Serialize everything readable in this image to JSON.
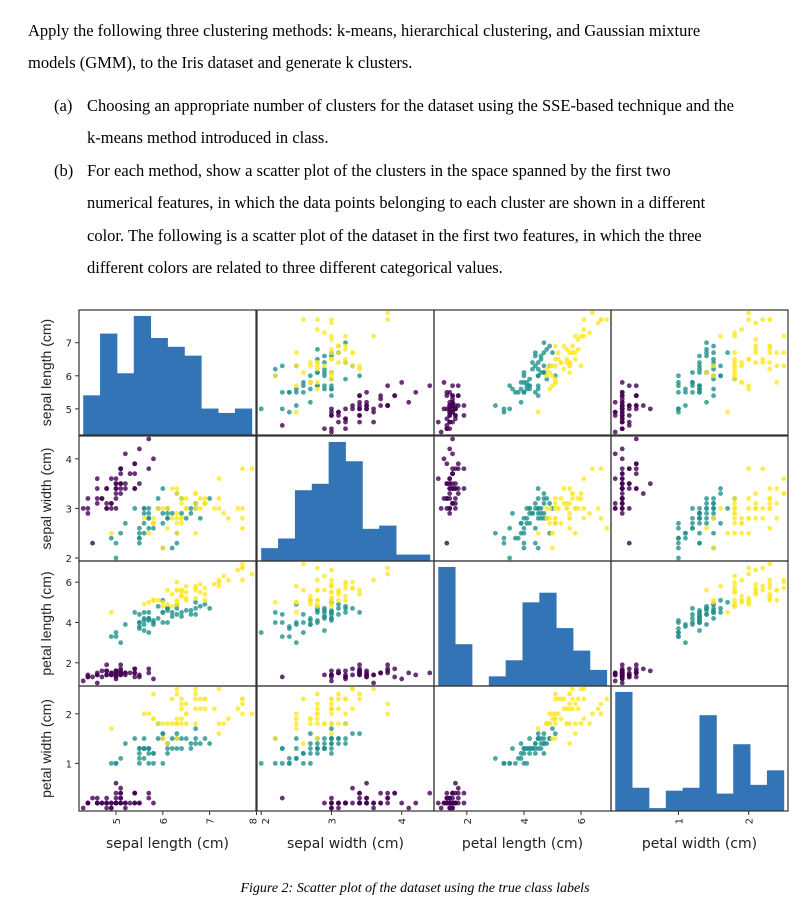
{
  "intro": {
    "line1": "Apply the following three clustering methods: k-means, hierarchical clustering, and Gaussian mixture",
    "line2": "models (GMM), to the Iris dataset and generate k clusters."
  },
  "items": [
    {
      "label": "(a)",
      "lines": [
        "Choosing an appropriate number of clusters for the dataset using the SSE-based technique and the",
        "k-means method introduced in class."
      ]
    },
    {
      "label": "(b)",
      "lines": [
        "For each method, show a scatter plot of the clusters in the space spanned by the first two",
        "numerical features, in which the data points belonging to each cluster are shown in a different",
        "color. The following is a scatter plot of the dataset in the first two features, in which the three",
        "different colors are related to three different categorical values."
      ]
    }
  ],
  "caption": "Figure 2: Scatter plot of the dataset using the true class labels",
  "chart_data": {
    "type": "scatter",
    "layout": "scatter-matrix",
    "diagonal": "histogram",
    "hist_bins": 10,
    "hist_color": "#3274b5",
    "variables": [
      "sepal length (cm)",
      "sepal width (cm)",
      "petal length (cm)",
      "petal width (cm)"
    ],
    "ranges": [
      [
        4.21,
        7.99
      ],
      [
        1.94,
        4.46
      ],
      [
        0.85,
        7.05
      ],
      [
        0.04,
        2.56
      ]
    ],
    "ticks": [
      [
        5,
        6,
        7,
        8
      ],
      [
        2,
        3,
        4
      ],
      [
        2,
        4,
        6
      ],
      [
        1,
        2
      ]
    ],
    "left_ticks": [
      [
        5,
        6,
        7
      ],
      [
        2,
        3,
        4
      ],
      [
        2,
        4,
        6
      ],
      [
        1,
        2
      ]
    ],
    "grid": false,
    "legend": "none",
    "class_colors": [
      "#440154",
      "#21918c",
      "#fde725"
    ],
    "series": [
      {
        "values": [
          [
            5.1,
            3.5,
            1.4,
            0.2
          ],
          [
            4.9,
            3.0,
            1.4,
            0.2
          ],
          [
            4.7,
            3.2,
            1.3,
            0.2
          ],
          [
            4.6,
            3.1,
            1.5,
            0.2
          ],
          [
            5.0,
            3.6,
            1.4,
            0.2
          ],
          [
            5.4,
            3.9,
            1.7,
            0.4
          ],
          [
            4.6,
            3.4,
            1.4,
            0.3
          ],
          [
            5.0,
            3.4,
            1.5,
            0.2
          ],
          [
            4.4,
            2.9,
            1.4,
            0.2
          ],
          [
            4.9,
            3.1,
            1.5,
            0.1
          ],
          [
            5.4,
            3.7,
            1.5,
            0.2
          ],
          [
            4.8,
            3.4,
            1.6,
            0.2
          ],
          [
            4.8,
            3.0,
            1.4,
            0.1
          ],
          [
            4.3,
            3.0,
            1.1,
            0.1
          ],
          [
            5.8,
            4.0,
            1.2,
            0.2
          ],
          [
            5.7,
            4.4,
            1.5,
            0.4
          ],
          [
            5.4,
            3.9,
            1.3,
            0.4
          ],
          [
            5.1,
            3.5,
            1.4,
            0.3
          ],
          [
            5.7,
            3.8,
            1.7,
            0.3
          ],
          [
            5.1,
            3.8,
            1.5,
            0.3
          ],
          [
            5.4,
            3.4,
            1.7,
            0.2
          ],
          [
            5.1,
            3.7,
            1.5,
            0.4
          ],
          [
            4.6,
            3.6,
            1.0,
            0.2
          ],
          [
            5.1,
            3.3,
            1.7,
            0.5
          ],
          [
            4.8,
            3.4,
            1.9,
            0.2
          ],
          [
            5.0,
            3.0,
            1.6,
            0.2
          ],
          [
            5.0,
            3.4,
            1.6,
            0.4
          ],
          [
            5.2,
            3.5,
            1.5,
            0.2
          ],
          [
            5.2,
            3.4,
            1.4,
            0.2
          ],
          [
            4.7,
            3.2,
            1.6,
            0.2
          ],
          [
            4.8,
            3.1,
            1.6,
            0.2
          ],
          [
            5.4,
            3.4,
            1.5,
            0.4
          ],
          [
            5.2,
            4.1,
            1.5,
            0.1
          ],
          [
            5.5,
            4.2,
            1.4,
            0.2
          ],
          [
            4.9,
            3.1,
            1.5,
            0.2
          ],
          [
            5.0,
            3.2,
            1.2,
            0.2
          ],
          [
            5.5,
            3.5,
            1.3,
            0.2
          ],
          [
            4.9,
            3.6,
            1.4,
            0.1
          ],
          [
            4.4,
            3.0,
            1.3,
            0.2
          ],
          [
            5.1,
            3.4,
            1.5,
            0.2
          ],
          [
            5.0,
            3.5,
            1.3,
            0.3
          ],
          [
            4.5,
            2.3,
            1.3,
            0.3
          ],
          [
            4.4,
            3.2,
            1.3,
            0.2
          ],
          [
            5.0,
            3.5,
            1.6,
            0.6
          ],
          [
            5.1,
            3.8,
            1.9,
            0.4
          ],
          [
            4.8,
            3.0,
            1.4,
            0.3
          ],
          [
            5.1,
            3.8,
            1.6,
            0.2
          ],
          [
            4.6,
            3.2,
            1.4,
            0.2
          ],
          [
            5.3,
            3.7,
            1.5,
            0.2
          ],
          [
            5.0,
            3.3,
            1.4,
            0.2
          ]
        ]
      },
      {
        "values": [
          [
            7.0,
            3.2,
            4.7,
            1.4
          ],
          [
            6.4,
            3.2,
            4.5,
            1.5
          ],
          [
            6.9,
            3.1,
            4.9,
            1.5
          ],
          [
            5.5,
            2.3,
            4.0,
            1.3
          ],
          [
            6.5,
            2.8,
            4.6,
            1.5
          ],
          [
            5.7,
            2.8,
            4.5,
            1.3
          ],
          [
            6.3,
            3.3,
            4.7,
            1.6
          ],
          [
            4.9,
            2.4,
            3.3,
            1.0
          ],
          [
            6.6,
            2.9,
            4.6,
            1.3
          ],
          [
            5.2,
            2.7,
            3.9,
            1.4
          ],
          [
            5.0,
            2.0,
            3.5,
            1.0
          ],
          [
            5.9,
            3.0,
            4.2,
            1.5
          ],
          [
            6.0,
            2.2,
            4.0,
            1.0
          ],
          [
            6.1,
            2.9,
            4.7,
            1.4
          ],
          [
            5.6,
            2.9,
            3.6,
            1.3
          ],
          [
            6.7,
            3.1,
            4.4,
            1.4
          ],
          [
            5.6,
            3.0,
            4.5,
            1.5
          ],
          [
            5.8,
            2.7,
            4.1,
            1.0
          ],
          [
            6.2,
            2.2,
            4.5,
            1.5
          ],
          [
            5.6,
            2.5,
            3.9,
            1.1
          ],
          [
            5.9,
            3.2,
            4.8,
            1.8
          ],
          [
            6.1,
            2.8,
            4.0,
            1.3
          ],
          [
            6.3,
            2.5,
            4.9,
            1.5
          ],
          [
            6.1,
            2.8,
            4.7,
            1.2
          ],
          [
            6.4,
            2.9,
            4.3,
            1.3
          ],
          [
            6.6,
            3.0,
            4.4,
            1.4
          ],
          [
            6.8,
            2.8,
            4.8,
            1.4
          ],
          [
            6.7,
            3.0,
            5.0,
            1.7
          ],
          [
            6.0,
            2.9,
            4.5,
            1.5
          ],
          [
            5.7,
            2.6,
            3.5,
            1.0
          ],
          [
            5.5,
            2.4,
            3.8,
            1.1
          ],
          [
            5.5,
            2.4,
            3.7,
            1.0
          ],
          [
            5.8,
            2.7,
            3.9,
            1.2
          ],
          [
            6.0,
            2.7,
            5.1,
            1.6
          ],
          [
            5.4,
            3.0,
            4.5,
            1.5
          ],
          [
            6.0,
            3.4,
            4.5,
            1.6
          ],
          [
            6.7,
            3.1,
            4.7,
            1.5
          ],
          [
            6.3,
            2.3,
            4.4,
            1.3
          ],
          [
            5.6,
            3.0,
            4.1,
            1.3
          ],
          [
            5.5,
            2.5,
            4.0,
            1.3
          ],
          [
            5.5,
            2.6,
            4.4,
            1.2
          ],
          [
            6.1,
            3.0,
            4.6,
            1.4
          ],
          [
            5.8,
            2.6,
            4.0,
            1.2
          ],
          [
            5.0,
            2.3,
            3.3,
            1.0
          ],
          [
            5.6,
            2.7,
            4.2,
            1.3
          ],
          [
            5.7,
            3.0,
            4.2,
            1.2
          ],
          [
            5.7,
            2.9,
            4.2,
            1.3
          ],
          [
            6.2,
            2.9,
            4.3,
            1.3
          ],
          [
            5.1,
            2.5,
            3.0,
            1.1
          ],
          [
            5.7,
            2.8,
            4.1,
            1.3
          ]
        ]
      },
      {
        "values": [
          [
            6.3,
            3.3,
            6.0,
            2.5
          ],
          [
            5.8,
            2.7,
            5.1,
            1.9
          ],
          [
            7.1,
            3.0,
            5.9,
            2.1
          ],
          [
            6.3,
            2.9,
            5.6,
            1.8
          ],
          [
            6.5,
            3.0,
            5.8,
            2.2
          ],
          [
            7.6,
            3.0,
            6.6,
            2.1
          ],
          [
            4.9,
            2.5,
            4.5,
            1.7
          ],
          [
            7.3,
            2.9,
            6.3,
            1.8
          ],
          [
            6.7,
            2.5,
            5.8,
            1.8
          ],
          [
            7.2,
            3.6,
            6.1,
            2.5
          ],
          [
            6.5,
            3.2,
            5.1,
            2.0
          ],
          [
            6.4,
            2.7,
            5.3,
            1.9
          ],
          [
            6.8,
            3.0,
            5.5,
            2.1
          ],
          [
            5.7,
            2.5,
            5.0,
            2.0
          ],
          [
            5.8,
            2.8,
            5.1,
            2.4
          ],
          [
            6.4,
            3.2,
            5.3,
            2.3
          ],
          [
            6.5,
            3.0,
            5.5,
            1.8
          ],
          [
            7.7,
            3.8,
            6.7,
            2.2
          ],
          [
            7.7,
            2.6,
            6.9,
            2.3
          ],
          [
            6.0,
            2.2,
            5.0,
            1.5
          ],
          [
            6.9,
            3.2,
            5.7,
            2.3
          ],
          [
            5.6,
            2.8,
            4.9,
            2.0
          ],
          [
            7.7,
            2.8,
            6.7,
            2.0
          ],
          [
            6.3,
            2.7,
            4.9,
            1.8
          ],
          [
            6.7,
            3.3,
            5.7,
            2.1
          ],
          [
            7.2,
            3.2,
            6.0,
            1.8
          ],
          [
            6.2,
            2.8,
            4.8,
            1.8
          ],
          [
            6.1,
            3.0,
            4.9,
            1.8
          ],
          [
            6.4,
            2.8,
            5.6,
            2.1
          ],
          [
            7.2,
            3.0,
            5.8,
            1.6
          ],
          [
            7.4,
            2.8,
            6.1,
            1.9
          ],
          [
            7.9,
            3.8,
            6.4,
            2.0
          ],
          [
            6.4,
            2.8,
            5.6,
            2.2
          ],
          [
            6.3,
            2.8,
            5.1,
            1.5
          ],
          [
            6.1,
            2.6,
            5.6,
            1.4
          ],
          [
            7.7,
            3.0,
            6.1,
            2.3
          ],
          [
            6.3,
            3.4,
            5.6,
            2.4
          ],
          [
            6.4,
            3.1,
            5.5,
            1.8
          ],
          [
            6.0,
            3.0,
            4.8,
            1.8
          ],
          [
            6.9,
            3.1,
            5.4,
            2.1
          ],
          [
            6.7,
            3.1,
            5.6,
            2.4
          ],
          [
            6.9,
            3.1,
            5.1,
            2.3
          ],
          [
            5.8,
            2.7,
            5.1,
            1.9
          ],
          [
            6.8,
            3.2,
            5.9,
            2.3
          ],
          [
            6.7,
            3.3,
            5.7,
            2.5
          ],
          [
            6.7,
            3.0,
            5.2,
            2.3
          ],
          [
            6.3,
            2.5,
            5.0,
            1.9
          ],
          [
            6.5,
            3.0,
            5.2,
            2.0
          ],
          [
            6.2,
            3.4,
            5.4,
            2.3
          ],
          [
            5.9,
            3.0,
            5.1,
            1.8
          ]
        ]
      }
    ]
  }
}
